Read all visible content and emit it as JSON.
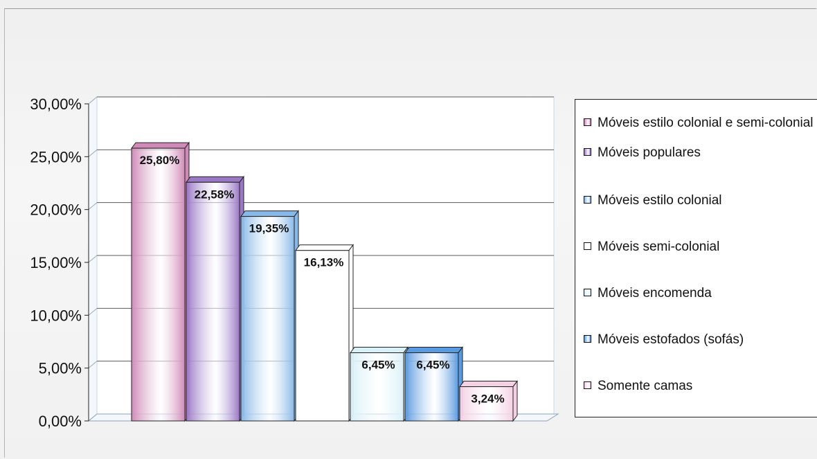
{
  "chart_data": {
    "type": "bar",
    "categories": [
      "Móveis estilo colonial e semi-colonial",
      "Móveis populares",
      "Móveis estilo colonial",
      "Móveis semi-colonial",
      "Móveis encomenda",
      "Móveis estofados (sofás)",
      "Somente camas"
    ],
    "values": [
      25.8,
      22.58,
      19.35,
      16.13,
      6.45,
      6.45,
      3.24
    ],
    "value_labels": [
      "25,80%",
      "22,58%",
      "19,35%",
      "16,13%",
      "6,45%",
      "6,45%",
      "3,24%"
    ],
    "ylim": [
      0,
      30
    ],
    "y_ticks": [
      {
        "value": 0,
        "label": "0,00%"
      },
      {
        "value": 5,
        "label": "5,00%"
      },
      {
        "value": 10,
        "label": "10,00%"
      },
      {
        "value": 15,
        "label": "15,00%"
      },
      {
        "value": 20,
        "label": "20,00%"
      },
      {
        "value": 25,
        "label": "25,00%"
      },
      {
        "value": 30,
        "label": "30,00%"
      }
    ],
    "grid": true,
    "legend_position": "right",
    "colors": [
      "#d08ab8",
      "#9a78c4",
      "#88b8e8",
      "#ffffff",
      "#d8f0f8",
      "#5a9ae0",
      "#f4d0e4"
    ]
  }
}
